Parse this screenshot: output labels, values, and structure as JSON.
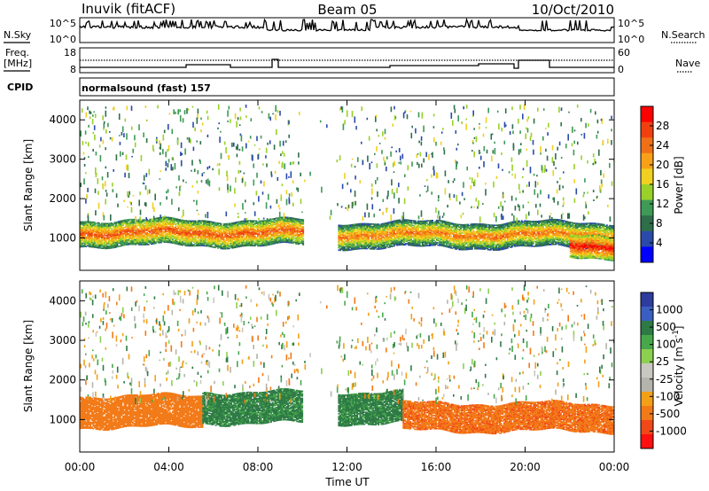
{
  "header": {
    "station": "Inuvik (fitACF)",
    "beam": "Beam 05",
    "date": "10/Oct/2010"
  },
  "side_labels": {
    "nsky": "N.Sky",
    "freq_line1": "Freq.",
    "freq_line2": "[MHz]",
    "cpid": "CPID",
    "nsearch": "N.Search",
    "nave": "Nave"
  },
  "mini_axes": {
    "nsky_left_top": "10^5",
    "nsky_left_bottom": "10^0",
    "nsky_right_top": "10^5",
    "nsky_right_bottom": "10^0",
    "freq_left_top": "18",
    "freq_left_bottom": "8",
    "nave_right_top": "60",
    "nave_right_bottom": "0"
  },
  "cpid_text": "normalsound (fast) 157",
  "colors": {
    "power_scale": [
      "#0000ff",
      "#2a4aaa",
      "#2e6f4a",
      "#3e9a55",
      "#9ad02a",
      "#f0d020",
      "#f7a018",
      "#f07018",
      "#f04010",
      "#ff0000"
    ],
    "velocity_scale": [
      "#2e3c9e",
      "#3a5fc0",
      "#2e7a46",
      "#47a84a",
      "#8cd050",
      "#c8c8c0",
      "#b4b4ac",
      "#f2a018",
      "#f27a18",
      "#f04818",
      "#ff1010"
    ]
  },
  "chart_data": [
    {
      "type": "heatmap",
      "ylabel": "Slant Range [km]",
      "ylim": [
        180,
        4500
      ],
      "yticks": [
        "1000",
        "2000",
        "3000",
        "4000"
      ],
      "colorbar": {
        "label": "Power [dB]",
        "ticks": [
          "28",
          "24",
          "20",
          "16",
          "12",
          "8",
          "4"
        ],
        "range": [
          0,
          32
        ]
      },
      "echo_bands": [
        {
          "from_hour": 0.0,
          "to_hour": 10.0,
          "range_km": [
            800,
            1450
          ],
          "power_db": 26
        },
        {
          "from_hour": 11.6,
          "to_hour": 24.0,
          "range_km": [
            750,
            1400
          ],
          "power_db": 24
        },
        {
          "from_hour": 22.0,
          "to_hour": 24.0,
          "range_km": [
            500,
            1100
          ],
          "power_db": 30
        }
      ]
    },
    {
      "type": "heatmap",
      "xlabel": "Time UT",
      "xticks": [
        "00:00",
        "04:00",
        "08:00",
        "12:00",
        "16:00",
        "20:00",
        "00:00"
      ],
      "xlim_hours": [
        0,
        24
      ],
      "ylabel": "Slant Range [km]",
      "ylim": [
        180,
        4500
      ],
      "yticks": [
        "1000",
        "2000",
        "3000",
        "4000"
      ],
      "colorbar": {
        "label": "Velocity [m s^-1]",
        "ticks": [
          "1000",
          "500",
          "100",
          "25",
          "-25",
          "-100",
          "-500",
          "-1000"
        ],
        "range": [
          -1000,
          1000
        ]
      },
      "echo_bands": [
        {
          "from_hour": 0.0,
          "to_hour": 5.5,
          "range_km": [
            800,
            1600
          ],
          "velocity_ms": -200
        },
        {
          "from_hour": 5.5,
          "to_hour": 10.0,
          "range_km": [
            900,
            1700
          ],
          "velocity_ms": 150
        },
        {
          "from_hour": 11.6,
          "to_hour": 14.5,
          "range_km": [
            900,
            1700
          ],
          "velocity_ms": 150
        },
        {
          "from_hour": 14.5,
          "to_hour": 24.0,
          "range_km": [
            700,
            1400
          ],
          "velocity_ms": -250
        }
      ]
    }
  ]
}
